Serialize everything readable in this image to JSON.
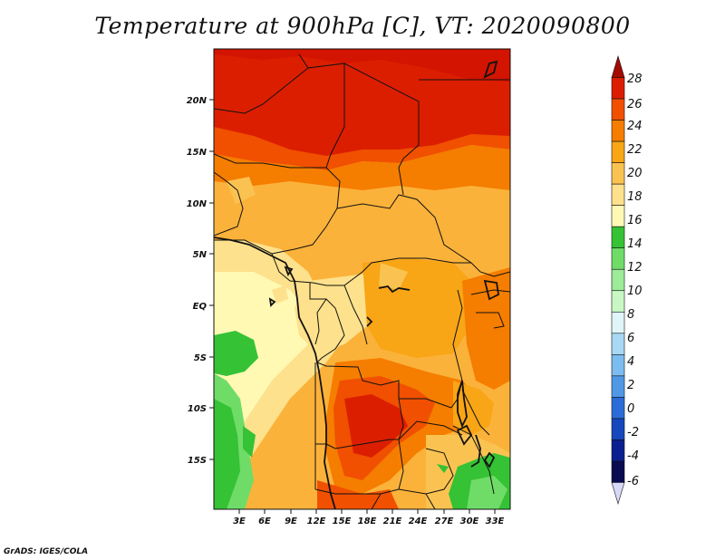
{
  "title": "Temperature at 900hPa [C], VT: 2020090800",
  "credit": "GrADS: IGES/COLA",
  "map": {
    "lat_ticks": [
      "20N",
      "15N",
      "10N",
      "5N",
      "EQ",
      "5S",
      "10S",
      "15S"
    ],
    "lon_ticks": [
      "3E",
      "6E",
      "9E",
      "12E",
      "15E",
      "18E",
      "21E",
      "24E",
      "27E",
      "30E",
      "33E"
    ]
  },
  "colorbar": {
    "labels": [
      "28",
      "26",
      "24",
      "22",
      "20",
      "18",
      "16",
      "14",
      "12",
      "10",
      "8",
      "6",
      "4",
      "2",
      "0",
      "-2",
      "-4",
      "-6"
    ],
    "colors": [
      "#a50a00",
      "#dc1e00",
      "#f05000",
      "#f57d00",
      "#f8a516",
      "#fac351",
      "#fde18c",
      "#fff9b4",
      "#35c235",
      "#6fdc68",
      "#9cec98",
      "#c8f7c4",
      "#dff5f8",
      "#a8d8f4",
      "#7cbcf0",
      "#5098e6",
      "#2c6cd6",
      "#1448bc",
      "#0a2090",
      "#090b50",
      "#d8d8f8"
    ]
  }
}
